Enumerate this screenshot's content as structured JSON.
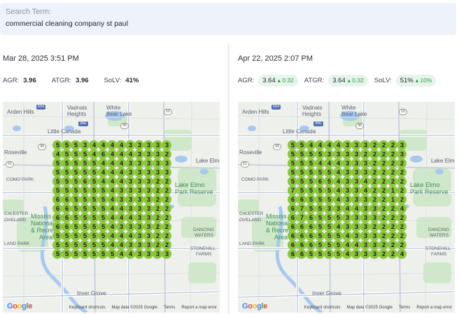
{
  "search": {
    "label": "Search Term:",
    "value": "commercial cleaning company st paul"
  },
  "colors": {
    "rank_fill": "#8cc63f",
    "pill_bg": "#e6f4ea",
    "delta_green": "#2e9a4a"
  },
  "panels": [
    {
      "date": "Mar 28, 2025 3:51 PM",
      "metrics": [
        {
          "label": "AGR:",
          "value": "3.96",
          "delta": ""
        },
        {
          "label": "ATGR:",
          "value": "3.96",
          "delta": ""
        },
        {
          "label": "SoLV:",
          "value": "41%",
          "delta": ""
        }
      ],
      "grid": [
        "5553444433333",
        "4555464443332",
        "5555544433333",
        "5555544433333",
        "5556544433322",
        "5555554333322",
        "6655554333322",
        "6655554433322",
        "6655554443322",
        "6655554333322",
        "5555554443322",
        "5555554433322",
        "5555555443333"
      ]
    },
    {
      "date": "Apr 22, 2025 2:07 PM",
      "metrics": [
        {
          "label": "AGR:",
          "value": "3.64",
          "delta": "▴ 0.32"
        },
        {
          "label": "ATGR:",
          "value": "3.64",
          "delta": "▴ 0.32"
        },
        {
          "label": "SoLV:",
          "value": "51%",
          "delta": "▴ 10%"
        }
      ],
      "grid": [
        "5544443332223",
        "5555333322223",
        "5554443332222",
        "5555543332222",
        "5556543342222",
        "7555543342212",
        "6655543332212",
        "6755334433224",
        "6765553333222",
        "6665543332222",
        "6665554333222",
        "6665554433222",
        "6655554333224"
      ]
    }
  ],
  "map": {
    "labels": {
      "arden_hills": "Arden Hills",
      "vadnais": "Vadnais",
      "heights": "Heights",
      "white": "White",
      "bear_lake": "Bear Lake",
      "little_canada": "Little Canada",
      "roseville": "Roseville",
      "como_park": "COMO PARK",
      "lake_elmo": "Lake Elmo",
      "lake_elmo_2": "Lake Elmo",
      "park_reserve": "Park Reserve",
      "calester": "CALESTER",
      "groveland": "OVELAND",
      "mississippi": "Mississ",
      "national": "National",
      "recreation": "& Recrea",
      "area": "Area",
      "land_park": "LAND PARK",
      "dancing": "DANCING",
      "waters": "WATERS",
      "stonehill": "STONEHILL",
      "farms": "FARMS",
      "inver_grove": "Inver Grove"
    },
    "shields": {
      "i694": "694",
      "i35e": "35E",
      "r96": "96",
      "r51": "51",
      "r36": "36",
      "r10": "10"
    },
    "attribution": {
      "keyboard": "Keyboard shortcuts",
      "data": "Map data ©2025 Google",
      "terms": "Terms",
      "report": "Report a map error"
    },
    "logo": "Google"
  }
}
